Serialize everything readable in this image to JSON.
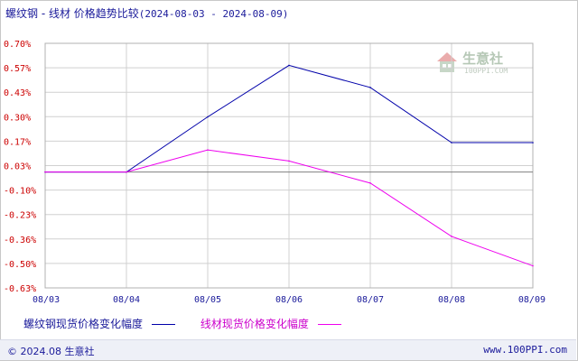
{
  "header": {
    "title_main": "螺纹钢 - 线材 价格趋势比较",
    "title_range": "(2024-08-03 - 2024-08-09)"
  },
  "watermark": {
    "name": "生意社",
    "url": "100PPI.COM"
  },
  "footer": {
    "copyright": "© 2024.08 生意社",
    "site": "www.100PPI.com"
  },
  "colors": {
    "series1": "#0000aa",
    "series2": "#ee00ee",
    "ytick": "#cc0000",
    "xtick": "#1a1a9a",
    "grid": "#d0d0d0",
    "zero": "#808080"
  },
  "chart_data": {
    "type": "line",
    "categories": [
      "08/03",
      "08/04",
      "08/05",
      "08/06",
      "08/07",
      "08/08",
      "08/09"
    ],
    "yticks": [
      "0.70%",
      "0.57%",
      "0.43%",
      "0.30%",
      "0.17%",
      "0.03%",
      "-0.10%",
      "-0.23%",
      "-0.36%",
      "-0.50%",
      "-0.63%"
    ],
    "ylim": [
      -0.63,
      0.7
    ],
    "grid": true,
    "legend_position": "bottom",
    "series": [
      {
        "name": "螺纹钢现货价格变化幅度",
        "values": [
          0.0,
          0.0,
          0.3,
          0.58,
          0.46,
          0.16,
          0.16
        ]
      },
      {
        "name": "线材现货价格变化幅度",
        "values": [
          0.0,
          0.0,
          0.12,
          0.06,
          -0.06,
          -0.35,
          -0.51
        ]
      }
    ]
  }
}
